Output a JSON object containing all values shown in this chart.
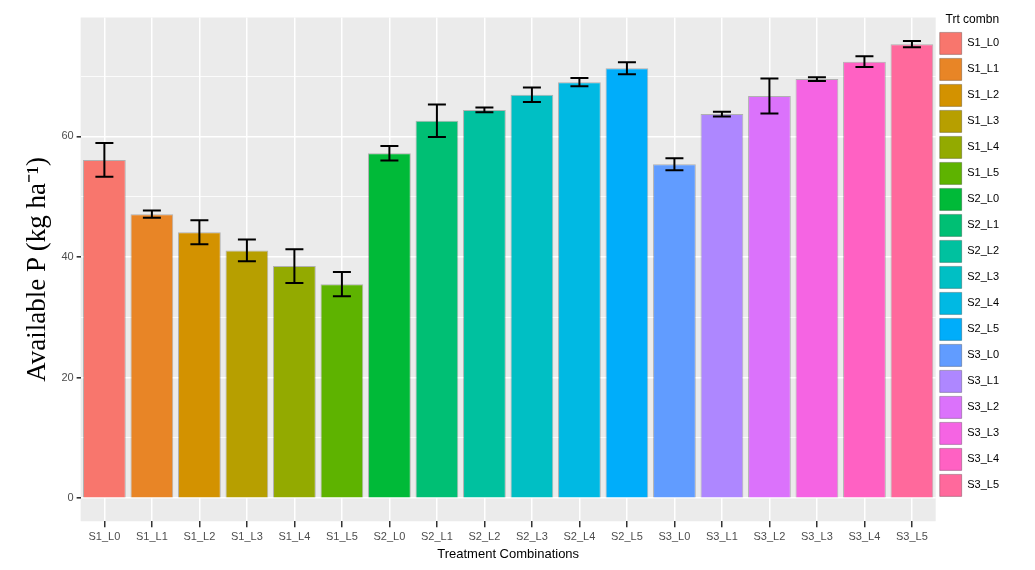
{
  "chart_data": {
    "type": "bar",
    "xlabel": "Treatment Combinations",
    "ylabel": "Available P (kg ha⁻¹)",
    "legend_title": "Trt combn",
    "stacked": true,
    "categories": [
      "S1_L0",
      "S1_L1",
      "S1_L2",
      "S1_L3",
      "S1_L4",
      "S1_L5",
      "S2_L0",
      "S2_L1",
      "S2_L2",
      "S2_L3",
      "S2_L4",
      "S2_L5",
      "S3_L0",
      "S3_L1",
      "S3_L2",
      "S3_L3",
      "S3_L4",
      "S3_L5"
    ],
    "series": [
      {
        "name": "S1_L0",
        "color": "#f8766d",
        "values": [
          56.1,
          null,
          null,
          null,
          null,
          null,
          null,
          null,
          null,
          null,
          null,
          null,
          null,
          null,
          null,
          null,
          null,
          null
        ],
        "errors": [
          2.8,
          null,
          null,
          null,
          null,
          null,
          null,
          null,
          null,
          null,
          null,
          null,
          null,
          null,
          null,
          null,
          null,
          null
        ]
      },
      {
        "name": "S1_L1",
        "color": "#e88526",
        "values": [
          null,
          47.1,
          null,
          null,
          null,
          null,
          null,
          null,
          null,
          null,
          null,
          null,
          null,
          null,
          null,
          null,
          null,
          null
        ],
        "errors": [
          null,
          0.6,
          null,
          null,
          null,
          null,
          null,
          null,
          null,
          null,
          null,
          null,
          null,
          null,
          null,
          null,
          null,
          null
        ]
      },
      {
        "name": "S1_L2",
        "color": "#d39200",
        "values": [
          null,
          null,
          44.1,
          null,
          null,
          null,
          null,
          null,
          null,
          null,
          null,
          null,
          null,
          null,
          null,
          null,
          null,
          null
        ],
        "errors": [
          null,
          null,
          2,
          null,
          null,
          null,
          null,
          null,
          null,
          null,
          null,
          null,
          null,
          null,
          null,
          null,
          null,
          null
        ]
      },
      {
        "name": "S1_L3",
        "color": "#b79f00",
        "values": [
          null,
          null,
          null,
          41.1,
          null,
          null,
          null,
          null,
          null,
          null,
          null,
          null,
          null,
          null,
          null,
          null,
          null,
          null
        ],
        "errors": [
          null,
          null,
          null,
          1.8,
          null,
          null,
          null,
          null,
          null,
          null,
          null,
          null,
          null,
          null,
          null,
          null,
          null,
          null
        ]
      },
      {
        "name": "S1_L4",
        "color": "#93aa00",
        "values": [
          null,
          null,
          null,
          null,
          38.5,
          null,
          null,
          null,
          null,
          null,
          null,
          null,
          null,
          null,
          null,
          null,
          null,
          null
        ],
        "errors": [
          null,
          null,
          null,
          null,
          2.8,
          null,
          null,
          null,
          null,
          null,
          null,
          null,
          null,
          null,
          null,
          null,
          null,
          null
        ]
      },
      {
        "name": "S1_L5",
        "color": "#5eb300",
        "values": [
          null,
          null,
          null,
          null,
          null,
          35.5,
          null,
          null,
          null,
          null,
          null,
          null,
          null,
          null,
          null,
          null,
          null,
          null
        ],
        "errors": [
          null,
          null,
          null,
          null,
          null,
          2,
          null,
          null,
          null,
          null,
          null,
          null,
          null,
          null,
          null,
          null,
          null,
          null
        ]
      },
      {
        "name": "S2_L0",
        "color": "#00ba38",
        "values": [
          null,
          null,
          null,
          null,
          null,
          null,
          57.2,
          null,
          null,
          null,
          null,
          null,
          null,
          null,
          null,
          null,
          null,
          null
        ],
        "errors": [
          null,
          null,
          null,
          null,
          null,
          null,
          1.2,
          null,
          null,
          null,
          null,
          null,
          null,
          null,
          null,
          null,
          null,
          null
        ]
      },
      {
        "name": "S2_L1",
        "color": "#00bf74",
        "values": [
          null,
          null,
          null,
          null,
          null,
          null,
          null,
          62.6,
          null,
          null,
          null,
          null,
          null,
          null,
          null,
          null,
          null,
          null
        ],
        "errors": [
          null,
          null,
          null,
          null,
          null,
          null,
          null,
          2.7,
          null,
          null,
          null,
          null,
          null,
          null,
          null,
          null,
          null,
          null
        ]
      },
      {
        "name": "S2_L2",
        "color": "#00c19f",
        "values": [
          null,
          null,
          null,
          null,
          null,
          null,
          null,
          null,
          64.4,
          null,
          null,
          null,
          null,
          null,
          null,
          null,
          null,
          null
        ],
        "errors": [
          null,
          null,
          null,
          null,
          null,
          null,
          null,
          null,
          0.4,
          null,
          null,
          null,
          null,
          null,
          null,
          null,
          null,
          null
        ]
      },
      {
        "name": "S2_L3",
        "color": "#00bfc4",
        "values": [
          null,
          null,
          null,
          null,
          null,
          null,
          null,
          null,
          null,
          66.9,
          null,
          null,
          null,
          null,
          null,
          null,
          null,
          null
        ],
        "errors": [
          null,
          null,
          null,
          null,
          null,
          null,
          null,
          null,
          null,
          1.2,
          null,
          null,
          null,
          null,
          null,
          null,
          null,
          null
        ]
      },
      {
        "name": "S2_L4",
        "color": "#00b9e3",
        "values": [
          null,
          null,
          null,
          null,
          null,
          null,
          null,
          null,
          null,
          null,
          69.0,
          null,
          null,
          null,
          null,
          null,
          null,
          null
        ],
        "errors": [
          null,
          null,
          null,
          null,
          null,
          null,
          null,
          null,
          null,
          null,
          0.7,
          null,
          null,
          null,
          null,
          null,
          null,
          null
        ]
      },
      {
        "name": "S2_L5",
        "color": "#00adfa",
        "values": [
          null,
          null,
          null,
          null,
          null,
          null,
          null,
          null,
          null,
          null,
          null,
          71.3,
          null,
          null,
          null,
          null,
          null,
          null
        ],
        "errors": [
          null,
          null,
          null,
          null,
          null,
          null,
          null,
          null,
          null,
          null,
          null,
          1,
          null,
          null,
          null,
          null,
          null,
          null
        ]
      },
      {
        "name": "S3_L0",
        "color": "#619cff",
        "values": [
          null,
          null,
          null,
          null,
          null,
          null,
          null,
          null,
          null,
          null,
          null,
          null,
          55.4,
          null,
          null,
          null,
          null,
          null
        ],
        "errors": [
          null,
          null,
          null,
          null,
          null,
          null,
          null,
          null,
          null,
          null,
          null,
          null,
          1,
          null,
          null,
          null,
          null,
          null
        ]
      },
      {
        "name": "S3_L1",
        "color": "#ae87ff",
        "values": [
          null,
          null,
          null,
          null,
          null,
          null,
          null,
          null,
          null,
          null,
          null,
          null,
          null,
          63.7,
          null,
          null,
          null,
          null
        ],
        "errors": [
          null,
          null,
          null,
          null,
          null,
          null,
          null,
          null,
          null,
          null,
          null,
          null,
          null,
          0.4,
          null,
          null,
          null,
          null
        ]
      },
      {
        "name": "S3_L2",
        "color": "#db72fb",
        "values": [
          null,
          null,
          null,
          null,
          null,
          null,
          null,
          null,
          null,
          null,
          null,
          null,
          null,
          null,
          66.7,
          null,
          null,
          null
        ],
        "errors": [
          null,
          null,
          null,
          null,
          null,
          null,
          null,
          null,
          null,
          null,
          null,
          null,
          null,
          null,
          2.9,
          null,
          null,
          null
        ]
      },
      {
        "name": "S3_L3",
        "color": "#f564e3",
        "values": [
          null,
          null,
          null,
          null,
          null,
          null,
          null,
          null,
          null,
          null,
          null,
          null,
          null,
          null,
          null,
          69.5,
          null,
          null
        ],
        "errors": [
          null,
          null,
          null,
          null,
          null,
          null,
          null,
          null,
          null,
          null,
          null,
          null,
          null,
          null,
          null,
          0.3,
          null,
          null
        ]
      },
      {
        "name": "S3_L4",
        "color": "#ff61c3",
        "values": [
          null,
          null,
          null,
          null,
          null,
          null,
          null,
          null,
          null,
          null,
          null,
          null,
          null,
          null,
          null,
          null,
          72.4,
          null
        ],
        "errors": [
          null,
          null,
          null,
          null,
          null,
          null,
          null,
          null,
          null,
          null,
          null,
          null,
          null,
          null,
          null,
          null,
          0.9,
          null
        ]
      },
      {
        "name": "S3_L5",
        "color": "#ff699c",
        "values": [
          null,
          null,
          null,
          null,
          null,
          null,
          null,
          null,
          null,
          null,
          null,
          null,
          null,
          null,
          null,
          null,
          null,
          75.3
        ],
        "errors": [
          null,
          null,
          null,
          null,
          null,
          null,
          null,
          null,
          null,
          null,
          null,
          null,
          null,
          null,
          null,
          null,
          null,
          0.5
        ]
      }
    ],
    "ylim": [
      -3.8,
      79.7
    ],
    "yticks": [
      0,
      {
        "value": 10,
        "label": null
      },
      20,
      {
        "value": 30,
        "label": null
      },
      40,
      {
        "value": 50,
        "label": null
      },
      60,
      {
        "value": 70,
        "label": null
      }
    ],
    "grid": true,
    "legend": "right"
  }
}
